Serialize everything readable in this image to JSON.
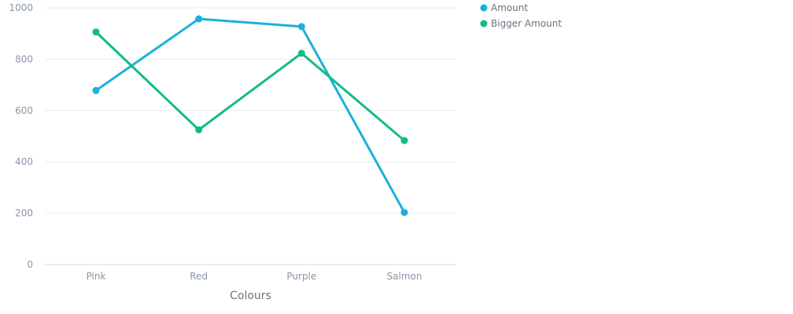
{
  "chart_data": {
    "type": "line",
    "title": "",
    "xlabel": "Colours",
    "ylabel": "",
    "categories": [
      "Pink",
      "Red",
      "Purple",
      "Salmon"
    ],
    "ylim": [
      0,
      1000
    ],
    "yticks": [
      0,
      200,
      400,
      600,
      800,
      1000
    ],
    "grid": true,
    "legend_position": "top-right",
    "series": [
      {
        "name": "Amount",
        "color": "#1cb0dc",
        "values": [
          678,
          957,
          927,
          203
        ]
      },
      {
        "name": "Bigger Amount",
        "color": "#14bb86",
        "values": [
          906,
          525,
          823,
          483
        ]
      }
    ]
  }
}
